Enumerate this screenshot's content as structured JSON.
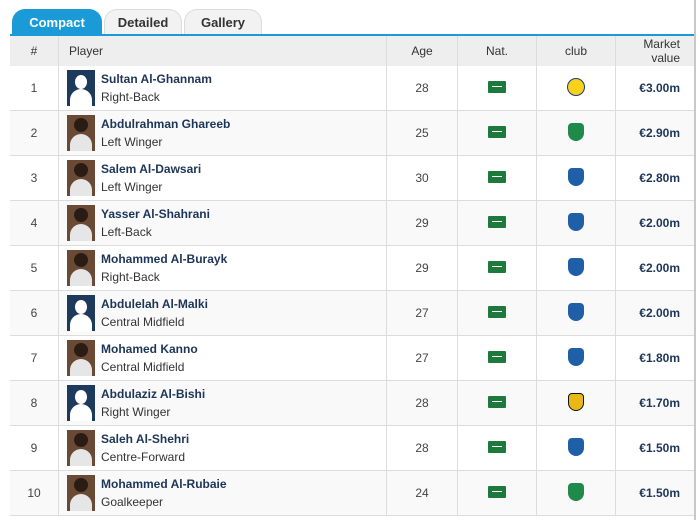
{
  "tabs": [
    "Compact",
    "Detailed",
    "Gallery"
  ],
  "columns": {
    "num": "#",
    "player": "Player",
    "age": "Age",
    "nat": "Nat.",
    "club": "club",
    "value": "Market value"
  },
  "colors": {
    "accent": "#1a9bd7",
    "name": "#1d3557"
  },
  "rows": [
    {
      "num": "1",
      "name": "Sultan Al-Ghannam",
      "position": "Right-Back",
      "age": "28",
      "photo": "placeholder-silhouette",
      "club_icon": "al-nassr-crest",
      "value": "€3.00m"
    },
    {
      "num": "2",
      "name": "Abdulrahman Ghareeb",
      "position": "Left Winger",
      "age": "25",
      "photo": "player-photo",
      "club_icon": "al-ahli-crest",
      "value": "€2.90m"
    },
    {
      "num": "3",
      "name": "Salem Al-Dawsari",
      "position": "Left Winger",
      "age": "30",
      "photo": "player-photo",
      "club_icon": "al-hilal-crest",
      "value": "€2.80m"
    },
    {
      "num": "4",
      "name": "Yasser Al-Shahrani",
      "position": "Left-Back",
      "age": "29",
      "photo": "player-photo",
      "club_icon": "al-hilal-crest",
      "value": "€2.00m"
    },
    {
      "num": "5",
      "name": "Mohammed Al-Burayk",
      "position": "Right-Back",
      "age": "29",
      "photo": "player-photo",
      "club_icon": "al-hilal-crest",
      "value": "€2.00m"
    },
    {
      "num": "6",
      "name": "Abdulelah Al-Malki",
      "position": "Central Midfield",
      "age": "27",
      "photo": "placeholder-silhouette",
      "club_icon": "al-hilal-crest",
      "value": "€2.00m"
    },
    {
      "num": "7",
      "name": "Mohamed Kanno",
      "position": "Central Midfield",
      "age": "27",
      "photo": "player-photo",
      "club_icon": "al-hilal-crest",
      "value": "€1.80m"
    },
    {
      "num": "8",
      "name": "Abdulaziz Al-Bishi",
      "position": "Right Winger",
      "age": "28",
      "photo": "placeholder-silhouette",
      "club_icon": "al-ittihad-crest",
      "value": "€1.70m"
    },
    {
      "num": "9",
      "name": "Saleh Al-Shehri",
      "position": "Centre-Forward",
      "age": "28",
      "photo": "player-photo",
      "club_icon": "al-hilal-crest",
      "value": "€1.50m"
    },
    {
      "num": "10",
      "name": "Mohammed Al-Rubaie",
      "position": "Goalkeeper",
      "age": "24",
      "photo": "player-photo",
      "club_icon": "al-ahli-crest",
      "value": "€1.50m"
    }
  ]
}
